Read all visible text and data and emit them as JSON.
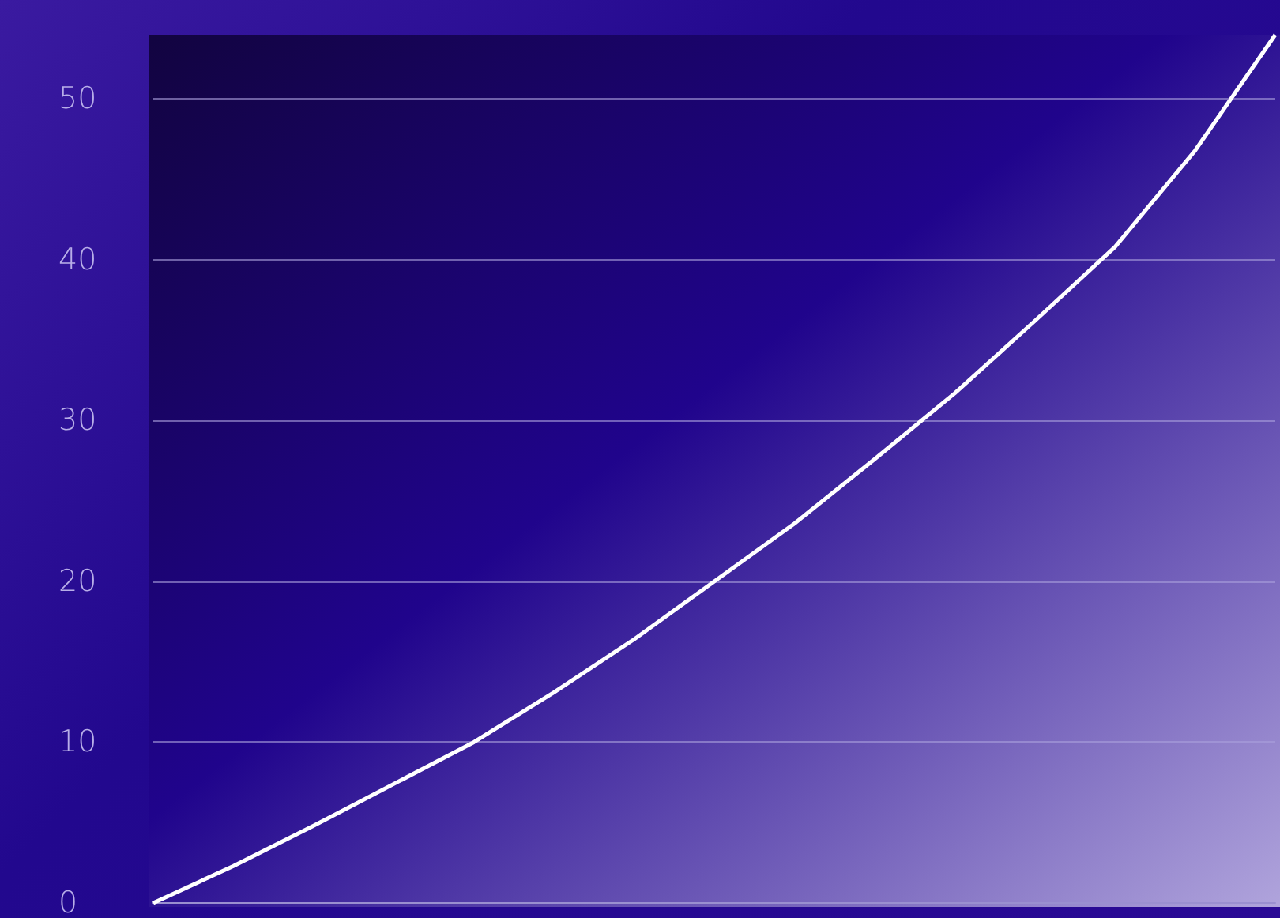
{
  "chart_data": {
    "type": "line",
    "categories": [
      null,
      null,
      null,
      null,
      null,
      null,
      null,
      null,
      null,
      null,
      null,
      null,
      null,
      null,
      null
    ],
    "series": [
      {
        "color": "#ffffff",
        "values": [
          0,
          2.3,
          4.8,
          7.4,
          10,
          13.1,
          16.4,
          20,
          23.6,
          27.6,
          31.7,
          36.2,
          40.8,
          46.8,
          54
        ]
      }
    ],
    "ylim": [
      0,
      54
    ],
    "yticks": [
      0,
      10,
      20,
      30,
      40,
      50
    ],
    "grid": "y",
    "marker": "none",
    "line_style": "solid"
  }
}
